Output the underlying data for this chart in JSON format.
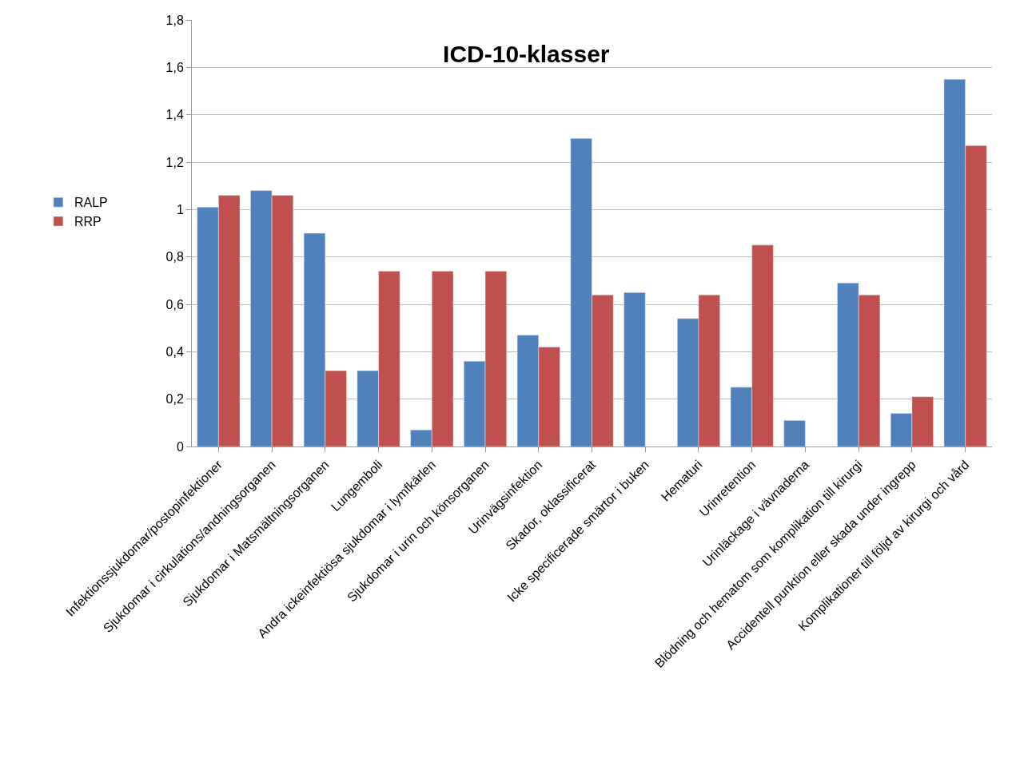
{
  "chart_data": {
    "type": "bar",
    "title": "ICD-10-klasser",
    "categories": [
      "Infektionssjukdomar/postopinfektioner",
      "Sjukdomar i cirkulations/andningsorganen",
      "Sjukdomar i Matsmältningsorganen",
      "Lungemboli",
      "Andra ickeinfektiösa sjukdomar i lymfkärlen",
      "Sjukdomar i urin och könsorganen",
      "Urinvägsinfektion",
      "Skador, oklassificerat",
      "Icke specificerade smärtor i buken",
      "Hematuri",
      "Urinretention",
      "Urinläckage i vävnaderna",
      "Blödning och hematom som komplikation till kirurgi",
      "Accidentell punktion eller skada under ingrepp",
      "Komplikationer till följd av kirurgi och vård"
    ],
    "series": [
      {
        "name": "RALP",
        "color": "#4f81bd",
        "values": [
          1.01,
          1.08,
          0.9,
          0.32,
          0.07,
          0.36,
          0.47,
          1.3,
          0.65,
          0.54,
          0.25,
          0.11,
          0.69,
          0.14,
          1.55
        ]
      },
      {
        "name": "RRP",
        "color": "#c0504d",
        "values": [
          1.06,
          1.06,
          0.32,
          0.74,
          0.74,
          0.74,
          0.42,
          0.64,
          null,
          0.64,
          0.85,
          null,
          0.64,
          0.21,
          1.27
        ]
      }
    ],
    "ylim": [
      0,
      1.8
    ],
    "yticks": [
      0,
      {
        "value": 0.2,
        "label": "0,2"
      },
      {
        "value": 0.4,
        "label": "0,4"
      },
      {
        "value": 0.6,
        "label": "0,6"
      },
      {
        "value": 0.8,
        "label": "0,8"
      },
      1,
      {
        "value": 1.2,
        "label": "1,2"
      },
      {
        "value": 1.4,
        "label": "1,4"
      },
      {
        "value": 1.6,
        "label": "1,6"
      },
      {
        "value": 1.8,
        "label": "1,8"
      }
    ],
    "grid": "y",
    "legend": "left"
  }
}
